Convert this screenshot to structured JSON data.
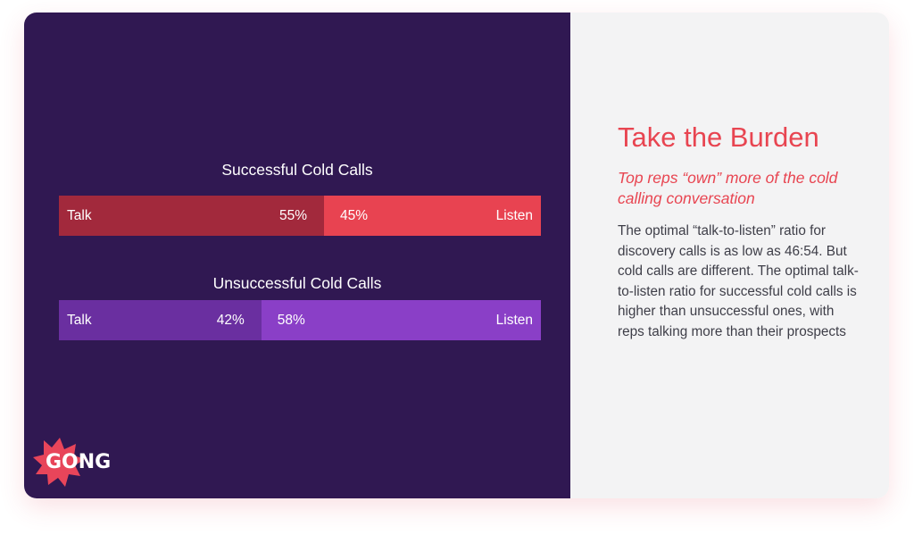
{
  "panel": {
    "title": "Take the Burden",
    "subtitle": "Top reps “own” more of the cold calling conversation",
    "body": "The optimal “talk-to-listen” ratio for discovery calls is as low as 46:54. But cold calls are different. The optimal talk-to-listen ratio for successful cold calls is higher than unsuccessful ones, with reps talking more than their prospects"
  },
  "logo": {
    "text": "GONG",
    "color": "#e8455a"
  },
  "colors": {
    "background": "#301852",
    "successful_talk": "#a2293c",
    "successful_listen": "#e84351",
    "unsuccessful_talk": "#6a2fa0",
    "unsuccessful_listen": "#8a3fc7"
  },
  "chart_data": {
    "type": "bar",
    "orientation": "horizontal-stacked-100",
    "charts": [
      {
        "title": "Successful Cold Calls",
        "segments": [
          {
            "label": "Talk",
            "value": 55,
            "value_label": "55%"
          },
          {
            "label": "Listen",
            "value": 45,
            "value_label": "45%"
          }
        ]
      },
      {
        "title": "Unsuccessful Cold Calls",
        "segments": [
          {
            "label": "Talk",
            "value": 42,
            "value_label": "42%"
          },
          {
            "label": "Listen",
            "value": 58,
            "value_label": "58%"
          }
        ]
      }
    ]
  }
}
